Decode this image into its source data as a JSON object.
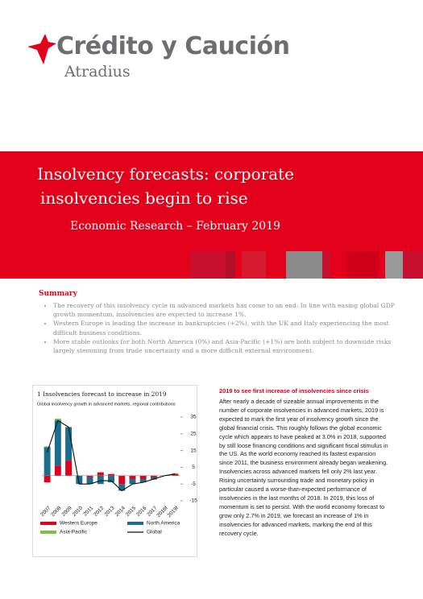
{
  "logo": {
    "name": "Crédito y Caución",
    "sub": "Atradius"
  },
  "banner": {
    "title_line1": "Insolvency forecasts: corporate",
    "title_line2": "insolvencies begin to rise",
    "subtitle": "Economic Research – February 2019"
  },
  "summary": {
    "heading": "Summary",
    "bullets": [
      "The recovery of this insolvency cycle in advanced markets has come to an end: In line with easing global GDP growth momentum, insolvencies are expected to increase 1%.",
      "Western Europe is leading the increase in bankruptcies (+2%), with the UK and Italy experiencing the most difficult business conditions.",
      "More stable outlooks for both North America (0%) and Asia-Pacific (+1%) are both subject to downside risks largely stemming from trade uncertainty and a more difficult external environment."
    ]
  },
  "chart_data": {
    "type": "bar",
    "stacked": true,
    "title": "1 Insolvencies forecast to increase in 2019",
    "subtitle": "Global insolvency growth in advanced markets, regional contributions",
    "categories": [
      "2007",
      "2008",
      "2009",
      "2010",
      "2011",
      "2012",
      "2013",
      "2014",
      "2015",
      "2016",
      "2017",
      "2018f",
      "2019f"
    ],
    "series": [
      {
        "name": "Western Europe",
        "color": "#e2001a",
        "values": [
          -4,
          6,
          9,
          0,
          -1,
          2,
          1,
          -5,
          -2,
          -2,
          -1,
          0,
          1
        ]
      },
      {
        "name": "North America",
        "color": "#1a6e8e",
        "values": [
          17,
          27,
          20,
          -5,
          -4,
          -5,
          -4,
          -4,
          -3,
          -2,
          -1,
          0,
          0
        ]
      },
      {
        "name": "Asia-Pacific",
        "color": "#7ac143",
        "values": [
          0.5,
          1,
          0,
          0,
          0,
          0,
          0,
          0,
          0,
          0,
          -0.5,
          0,
          0.5
        ]
      },
      {
        "name": "Global",
        "color": "#111111",
        "type": "line",
        "values": [
          14,
          33,
          29,
          -5,
          -5,
          -3,
          -3,
          -9,
          -5,
          -4,
          -2,
          0,
          1
        ]
      }
    ],
    "ylim": [
      -15,
      35
    ],
    "yticks": [
      35,
      25,
      15,
      5,
      -5,
      -15
    ]
  },
  "article": {
    "heading": "2019 to see first increase of insolvencies since crisis",
    "body": "After nearly a decade of sizeable annual improvements in the number of corporate insolvencies in advanced markets, 2019 is expected to mark the first year of insolvency growth since the global financial crisis. This roughly follows the global economic cycle which appears to have peaked at 3.0% in 2018, supported by still loose financing conditions and significant fiscal stimulus in the US. As the world economy reached its fastest expansion since 2011, the business environment already began weakening. Insolvencies across advanced markets fell only 2% last year. Rising uncertainty surrounding trade and monetary policy in particular caused a worse-than-expected performance of insolvencies in the last months of 2018. In 2019, this loss of momentum is set to persist. With the world economy forecast to grow only 2.7% in 2019, we forecast an increase of 1% in insolvencies for advanced markets, marking the end of this recovery cycle."
  }
}
